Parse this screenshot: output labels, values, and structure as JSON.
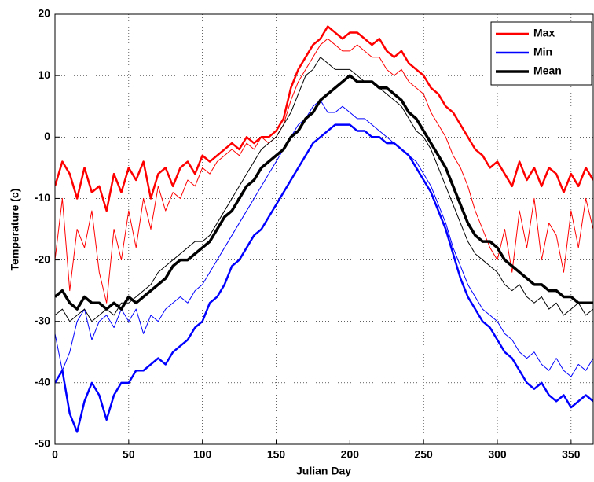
{
  "chart_data": {
    "type": "line",
    "xlabel": "Julian Day",
    "ylabel": "Temperature (c)",
    "xlim": [
      0,
      365
    ],
    "xticks": [
      0,
      50,
      100,
      150,
      200,
      250,
      300,
      350
    ],
    "ylim": [
      -50,
      20
    ],
    "yticks": [
      -50,
      -40,
      -30,
      -20,
      -10,
      0,
      10,
      20
    ],
    "grid": true,
    "legend": "upper right",
    "x": [
      0,
      5,
      10,
      15,
      20,
      25,
      30,
      35,
      40,
      45,
      50,
      55,
      60,
      65,
      70,
      75,
      80,
      85,
      90,
      95,
      100,
      105,
      110,
      115,
      120,
      125,
      130,
      135,
      140,
      145,
      150,
      155,
      160,
      165,
      170,
      175,
      180,
      185,
      190,
      195,
      200,
      205,
      210,
      215,
      220,
      225,
      230,
      235,
      240,
      245,
      250,
      255,
      260,
      265,
      270,
      275,
      280,
      285,
      290,
      295,
      300,
      305,
      310,
      315,
      320,
      325,
      330,
      335,
      340,
      345,
      350,
      355,
      360,
      365
    ],
    "series": [
      {
        "color": "#ff0000",
        "line_width": 1,
        "values": [
          -20,
          -10,
          -25,
          -15,
          -18,
          -12,
          -22,
          -27,
          -15,
          -20,
          -12,
          -18,
          -10,
          -15,
          -8,
          -12,
          -9,
          -10,
          -7,
          -8,
          -5,
          -6,
          -4,
          -3,
          -2,
          -3,
          -1,
          -2,
          0,
          -1,
          0,
          2,
          6,
          9,
          11,
          13,
          15,
          16,
          15,
          14,
          14,
          15,
          14,
          13,
          13,
          11,
          10,
          11,
          9,
          8,
          7,
          4,
          2,
          0,
          -3,
          -5,
          -8,
          -12,
          -15,
          -18,
          -20,
          -15,
          -22,
          -12,
          -18,
          -10,
          -20,
          -14,
          -16,
          -22,
          -12,
          -18,
          -10,
          -15
        ]
      },
      {
        "color": "#0000ff",
        "line_width": 1,
        "values": [
          -32,
          -38,
          -35,
          -30,
          -28,
          -33,
          -30,
          -29,
          -31,
          -28,
          -30,
          -28,
          -32,
          -29,
          -30,
          -28,
          -27,
          -26,
          -27,
          -25,
          -24,
          -22,
          -20,
          -18,
          -16,
          -14,
          -12,
          -10,
          -8,
          -6,
          -4,
          -2,
          0,
          2,
          3,
          5,
          6,
          4,
          4,
          5,
          4,
          3,
          3,
          2,
          1,
          0,
          -1,
          -2,
          -3,
          -4,
          -6,
          -8,
          -11,
          -14,
          -18,
          -21,
          -24,
          -26,
          -28,
          -29,
          -30,
          -32,
          -33,
          -35,
          -36,
          -35,
          -37,
          -38,
          -36,
          -38,
          -39,
          -37,
          -38,
          -36
        ]
      },
      {
        "color": "#000000",
        "line_width": 1,
        "values": [
          -29,
          -28,
          -30,
          -29,
          -28,
          -30,
          -29,
          -28,
          -29,
          -27,
          -27,
          -26,
          -25,
          -24,
          -22,
          -21,
          -20,
          -19,
          -18,
          -17,
          -17,
          -16,
          -14,
          -12,
          -10,
          -8,
          -6,
          -4,
          -2,
          -1,
          0,
          2,
          4,
          7,
          10,
          11,
          13,
          12,
          11,
          11,
          11,
          10,
          9,
          9,
          8,
          7,
          6,
          5,
          3,
          1,
          0,
          -2,
          -5,
          -8,
          -11,
          -14,
          -17,
          -19,
          -20,
          -21,
          -22,
          -24,
          -25,
          -24,
          -26,
          -27,
          -26,
          -28,
          -27,
          -29,
          -28,
          -27,
          -29,
          -28
        ]
      },
      {
        "name": "Max",
        "color": "#ff0000",
        "line_width": 2.5,
        "values": [
          -8,
          -4,
          -6,
          -10,
          -5,
          -9,
          -8,
          -12,
          -6,
          -9,
          -5,
          -7,
          -4,
          -10,
          -6,
          -5,
          -8,
          -5,
          -4,
          -6,
          -3,
          -4,
          -3,
          -2,
          -1,
          -2,
          0,
          -1,
          0,
          0,
          1,
          3,
          8,
          11,
          13,
          15,
          16,
          18,
          17,
          16,
          17,
          17,
          16,
          15,
          16,
          14,
          13,
          14,
          12,
          11,
          10,
          8,
          7,
          5,
          4,
          2,
          0,
          -2,
          -3,
          -5,
          -4,
          -6,
          -8,
          -4,
          -7,
          -5,
          -8,
          -5,
          -6,
          -9,
          -6,
          -8,
          -5,
          -7
        ]
      },
      {
        "name": "Min",
        "color": "#0000ff",
        "line_width": 2.5,
        "values": [
          -40,
          -38,
          -45,
          -48,
          -43,
          -40,
          -42,
          -46,
          -42,
          -40,
          -40,
          -38,
          -38,
          -37,
          -36,
          -37,
          -35,
          -34,
          -33,
          -31,
          -30,
          -27,
          -26,
          -24,
          -21,
          -20,
          -18,
          -16,
          -15,
          -13,
          -11,
          -9,
          -7,
          -5,
          -3,
          -1,
          0,
          1,
          2,
          2,
          2,
          1,
          1,
          0,
          0,
          -1,
          -1,
          -2,
          -3,
          -5,
          -7,
          -9,
          -12,
          -15,
          -19,
          -23,
          -26,
          -28,
          -30,
          -31,
          -33,
          -35,
          -36,
          -38,
          -40,
          -41,
          -40,
          -42,
          -43,
          -42,
          -44,
          -43,
          -42,
          -43
        ]
      },
      {
        "name": "Mean",
        "color": "#000000",
        "line_width": 3.5,
        "values": [
          -26,
          -25,
          -27,
          -28,
          -26,
          -27,
          -27,
          -28,
          -27,
          -28,
          -26,
          -27,
          -26,
          -25,
          -24,
          -23,
          -21,
          -20,
          -20,
          -19,
          -18,
          -17,
          -15,
          -13,
          -12,
          -10,
          -8,
          -7,
          -5,
          -4,
          -3,
          -2,
          0,
          1,
          3,
          4,
          6,
          7,
          8,
          9,
          10,
          9,
          9,
          9,
          8,
          8,
          7,
          6,
          4,
          3,
          1,
          -1,
          -3,
          -5,
          -8,
          -11,
          -14,
          -16,
          -17,
          -17,
          -18,
          -20,
          -21,
          -22,
          -23,
          -24,
          -24,
          -25,
          -25,
          -26,
          -26,
          -27,
          -27,
          -27
        ]
      }
    ]
  }
}
